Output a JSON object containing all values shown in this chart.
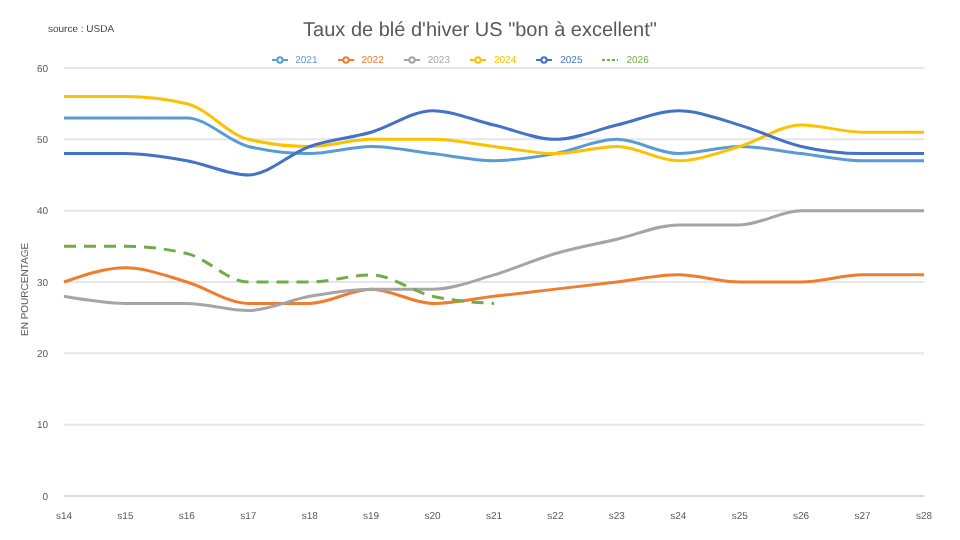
{
  "chart_data": {
    "type": "line",
    "title": "Taux de blé d'hiver US \"bon à excellent\"",
    "ylabel": "EN POURCENTAGE",
    "annotations": [
      "source : USDA"
    ],
    "categories": [
      "s14",
      "s15",
      "s16",
      "s17",
      "s18",
      "s19",
      "s20",
      "s21",
      "s22",
      "s23",
      "s24",
      "s25",
      "s26",
      "s27",
      "s28"
    ],
    "series": [
      {
        "name": "2021",
        "color": "#5b9bd5",
        "values": [
          53,
          53,
          53,
          49,
          48,
          49,
          48,
          47,
          48,
          50,
          48,
          49,
          48,
          47,
          47
        ]
      },
      {
        "name": "2022",
        "color": "#ed7d31",
        "values": [
          30,
          32,
          30,
          27,
          27,
          29,
          27,
          28,
          29,
          30,
          31,
          30,
          30,
          31,
          31
        ]
      },
      {
        "name": "2023",
        "color": "#a5a5a5",
        "values": [
          28,
          27,
          27,
          26,
          28,
          29,
          29,
          31,
          34,
          36,
          38,
          38,
          40,
          40,
          40
        ]
      },
      {
        "name": "2024",
        "color": "#ffc000",
        "values": [
          56,
          56,
          55,
          50,
          49,
          50,
          50,
          49,
          48,
          49,
          47,
          49,
          52,
          51,
          51
        ]
      },
      {
        "name": "2025",
        "color": "#4472c4",
        "values": [
          48,
          48,
          47,
          45,
          49,
          51,
          54,
          52,
          50,
          52,
          54,
          52,
          49,
          48,
          48
        ]
      },
      {
        "name": "2026",
        "color": "#70ad47",
        "line_style": "dashed",
        "values": [
          35,
          35,
          34,
          30,
          30,
          31,
          28,
          27,
          null,
          null,
          null,
          null,
          null,
          null,
          null
        ]
      }
    ],
    "ylim": [
      0,
      60
    ],
    "yticks": [
      0,
      10,
      20,
      30,
      40,
      50,
      60
    ],
    "grid": "y",
    "legend": "top",
    "marker": "none"
  }
}
